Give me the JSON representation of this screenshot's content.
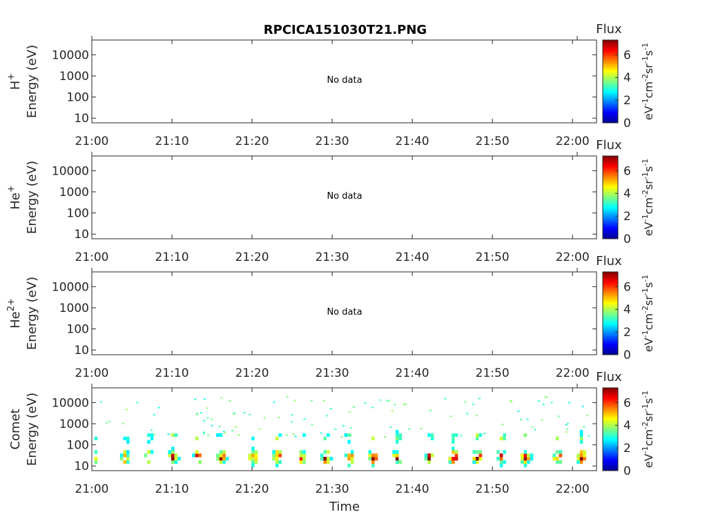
{
  "title": "RPCICA151030T21.PNG",
  "xlabel": "Time",
  "x_ticks": [
    "21:00",
    "21:10",
    "21:20",
    "21:30",
    "21:40",
    "21:50",
    "22:00"
  ],
  "y_ticks": [
    "10",
    "100",
    "1000",
    "10000"
  ],
  "colorbar": {
    "title": "Flux",
    "ticks": [
      "0",
      "2",
      "4",
      "6"
    ],
    "label_parts": [
      "eV",
      "-1",
      "cm",
      "-2",
      "sr",
      "-1",
      "s",
      "-1"
    ],
    "range": [
      0,
      7.3
    ],
    "colormap": "jet"
  },
  "chart_data": [
    {
      "type": "heatmap",
      "species": "H",
      "species_sup": "+",
      "ylabel": "Energy (eV)",
      "no_data": "No data",
      "xlim": [
        "21:00",
        "22:03"
      ],
      "ylim": [
        6,
        50000
      ],
      "yscale": "log",
      "cells": []
    },
    {
      "type": "heatmap",
      "species": "He",
      "species_sup": "+",
      "ylabel": "Energy (eV)",
      "no_data": "No data",
      "xlim": [
        "21:00",
        "22:03"
      ],
      "ylim": [
        6,
        50000
      ],
      "yscale": "log",
      "cells": []
    },
    {
      "type": "heatmap",
      "species": "He",
      "species_sup": "2+",
      "ylabel": "Energy (eV)",
      "no_data": "No data",
      "xlim": [
        "21:00",
        "22:03"
      ],
      "ylim": [
        6,
        50000
      ],
      "yscale": "log",
      "cells": []
    },
    {
      "type": "heatmap",
      "species": "Comet",
      "species_sup": "",
      "ylabel": "Energy (eV)",
      "no_data": "",
      "xlim": [
        "21:00",
        "22:03"
      ],
      "ylim": [
        6,
        50000
      ],
      "yscale": "log",
      "bursts": [
        {
          "t": "21:00",
          "flux": 6.3
        },
        {
          "t": "21:04",
          "flux": 6.0
        },
        {
          "t": "21:07",
          "flux": 5.8
        },
        {
          "t": "21:10",
          "flux": 6.4
        },
        {
          "t": "21:13",
          "flux": 6.2
        },
        {
          "t": "21:16",
          "flux": 6.8
        },
        {
          "t": "21:20",
          "flux": 6.0
        },
        {
          "t": "21:23",
          "flux": 6.2
        },
        {
          "t": "21:26",
          "flux": 5.9
        },
        {
          "t": "21:29",
          "flux": 6.6
        },
        {
          "t": "21:32",
          "flux": 6.7
        },
        {
          "t": "21:35",
          "flux": 6.5
        },
        {
          "t": "21:38",
          "flux": 6.0
        },
        {
          "t": "21:42",
          "flux": 6.6
        },
        {
          "t": "21:45",
          "flux": 6.7
        },
        {
          "t": "21:48",
          "flux": 6.5
        },
        {
          "t": "21:51",
          "flux": 6.6
        },
        {
          "t": "21:54",
          "flux": 6.8
        },
        {
          "t": "21:58",
          "flux": 6.4
        },
        {
          "t": "22:01",
          "flux": 6.5
        }
      ],
      "sparse_high_energy_flux": 3.4
    }
  ]
}
